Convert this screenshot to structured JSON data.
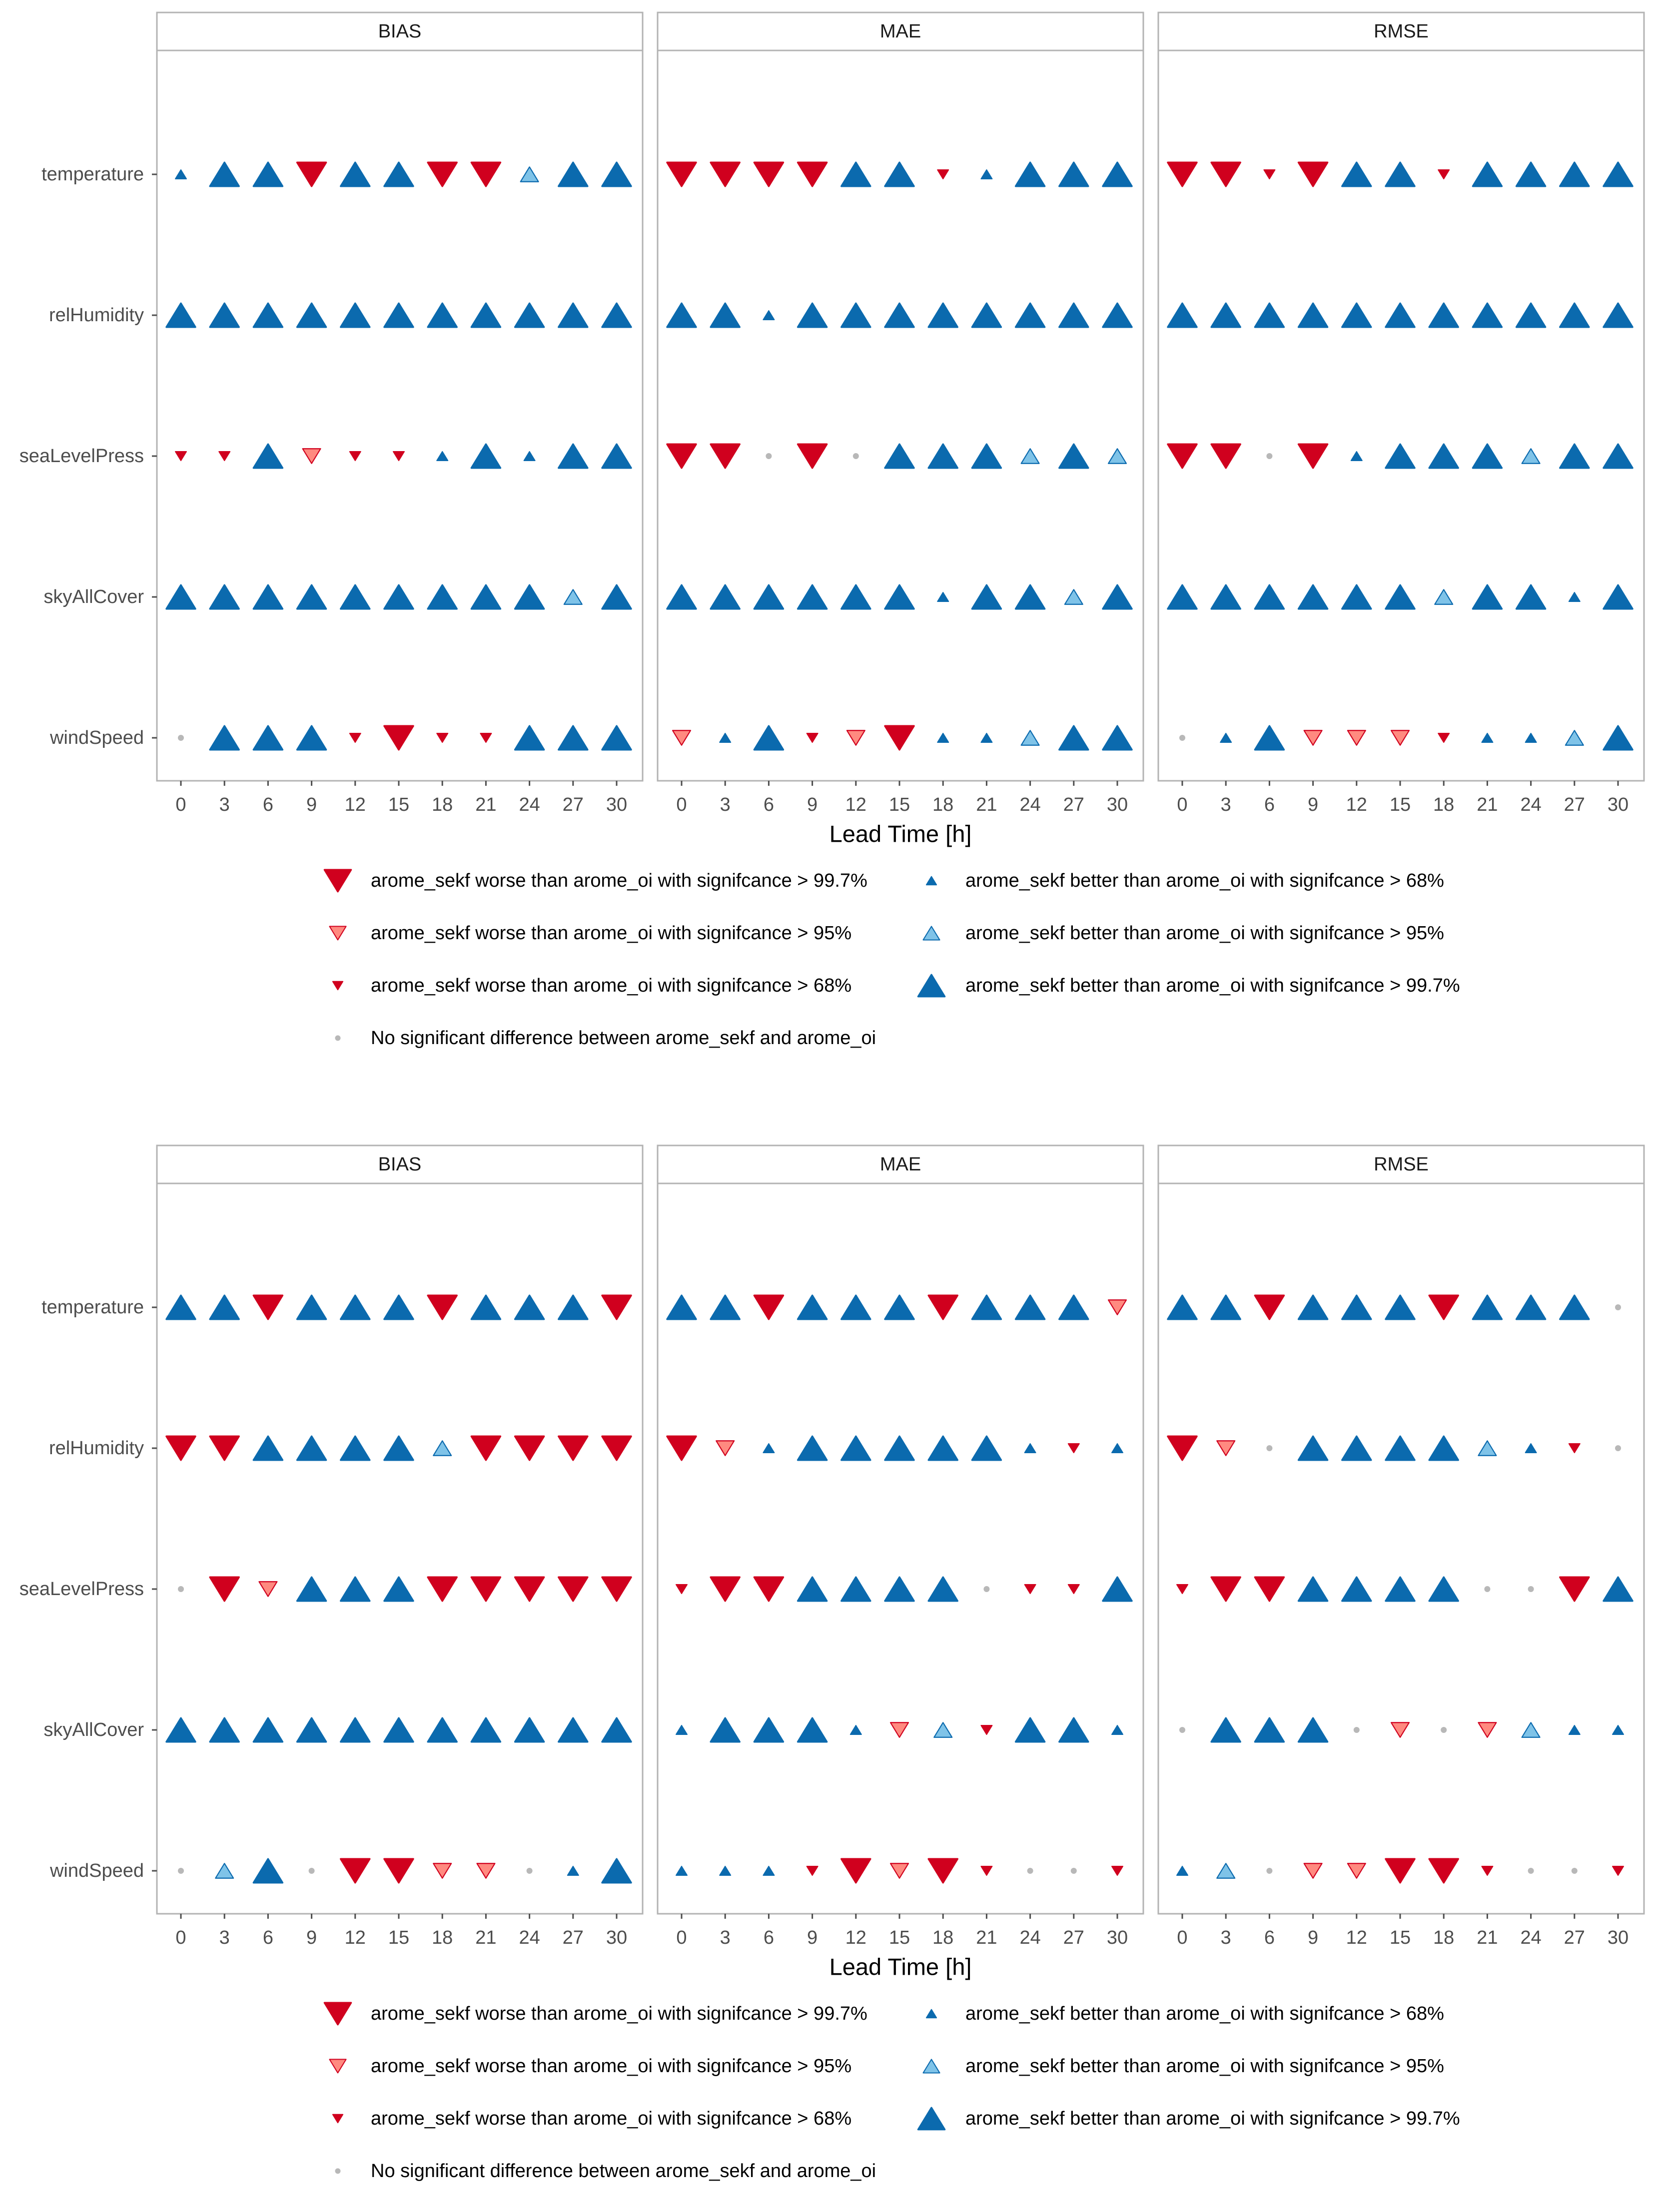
{
  "chart_data": [
    {
      "type": "scatter",
      "facets": [
        "BIAS",
        "MAE",
        "RMSE"
      ],
      "variables": [
        "temperature",
        "relHumidity",
        "seaLevelPress",
        "skyAllCover",
        "windSpeed"
      ],
      "lead_times": [
        0,
        3,
        6,
        9,
        12,
        15,
        18,
        21,
        24,
        27,
        30
      ],
      "xlabel": "Lead Time [h]",
      "code_key": {
        "W3": "arome_sekf worse, >99.7%",
        "W2": "arome_sekf worse, >95%",
        "W1": "arome_sekf worse, >68%",
        "N": "no significant difference",
        "B1": "arome_sekf better, >68%",
        "B2": "arome_sekf better, >95%",
        "B3": "arome_sekf better, >99.7%"
      },
      "values": {
        "BIAS": {
          "temperature": [
            "B1",
            "B3",
            "B3",
            "W3",
            "B3",
            "B3",
            "W3",
            "W3",
            "B2",
            "B3",
            "B3"
          ],
          "relHumidity": [
            "B3",
            "B3",
            "B3",
            "B3",
            "B3",
            "B3",
            "B3",
            "B3",
            "B3",
            "B3",
            "B3"
          ],
          "seaLevelPress": [
            "W1",
            "W1",
            "B3",
            "W2",
            "W1",
            "W1",
            "B1",
            "B3",
            "B1",
            "B3",
            "B3"
          ],
          "skyAllCover": [
            "B3",
            "B3",
            "B3",
            "B3",
            "B3",
            "B3",
            "B3",
            "B3",
            "B3",
            "B2",
            "B3"
          ],
          "windSpeed": [
            "N",
            "B3",
            "B3",
            "B3",
            "W1",
            "W3",
            "W1",
            "W1",
            "B3",
            "B3",
            "B3"
          ]
        },
        "MAE": {
          "temperature": [
            "W3",
            "W3",
            "W3",
            "W3",
            "B3",
            "B3",
            "W1",
            "B1",
            "B3",
            "B3",
            "B3"
          ],
          "relHumidity": [
            "B3",
            "B3",
            "B1",
            "B3",
            "B3",
            "B3",
            "B3",
            "B3",
            "B3",
            "B3",
            "B3"
          ],
          "seaLevelPress": [
            "W3",
            "W3",
            "N",
            "W3",
            "N",
            "B3",
            "B3",
            "B3",
            "B2",
            "B3",
            "B2"
          ],
          "skyAllCover": [
            "B3",
            "B3",
            "B3",
            "B3",
            "B3",
            "B3",
            "B1",
            "B3",
            "B3",
            "B2",
            "B3"
          ],
          "windSpeed": [
            "W2",
            "B1",
            "B3",
            "W1",
            "W2",
            "W3",
            "B1",
            "B1",
            "B2",
            "B3",
            "B3"
          ]
        },
        "RMSE": {
          "temperature": [
            "W3",
            "W3",
            "W1",
            "W3",
            "B3",
            "B3",
            "W1",
            "B3",
            "B3",
            "B3",
            "B3"
          ],
          "relHumidity": [
            "B3",
            "B3",
            "B3",
            "B3",
            "B3",
            "B3",
            "B3",
            "B3",
            "B3",
            "B3",
            "B3"
          ],
          "seaLevelPress": [
            "W3",
            "W3",
            "N",
            "W3",
            "B1",
            "B3",
            "B3",
            "B3",
            "B2",
            "B3",
            "B3"
          ],
          "skyAllCover": [
            "B3",
            "B3",
            "B3",
            "B3",
            "B3",
            "B3",
            "B2",
            "B3",
            "B3",
            "B1",
            "B3"
          ],
          "windSpeed": [
            "N",
            "B1",
            "B3",
            "W2",
            "W2",
            "W2",
            "W1",
            "B1",
            "B1",
            "B2",
            "B3"
          ]
        }
      }
    },
    {
      "type": "scatter",
      "facets": [
        "BIAS",
        "MAE",
        "RMSE"
      ],
      "variables": [
        "temperature",
        "relHumidity",
        "seaLevelPress",
        "skyAllCover",
        "windSpeed"
      ],
      "lead_times": [
        0,
        3,
        6,
        9,
        12,
        15,
        18,
        21,
        24,
        27,
        30
      ],
      "xlabel": "Lead Time [h]",
      "values": {
        "BIAS": {
          "temperature": [
            "B3",
            "B3",
            "W3",
            "B3",
            "B3",
            "B3",
            "W3",
            "B3",
            "B3",
            "B3",
            "W3"
          ],
          "relHumidity": [
            "W3",
            "W3",
            "B3",
            "B3",
            "B3",
            "B3",
            "B2",
            "W3",
            "W3",
            "W3",
            "W3"
          ],
          "seaLevelPress": [
            "N",
            "W3",
            "W2",
            "B3",
            "B3",
            "B3",
            "W3",
            "W3",
            "W3",
            "W3",
            "W3"
          ],
          "skyAllCover": [
            "B3",
            "B3",
            "B3",
            "B3",
            "B3",
            "B3",
            "B3",
            "B3",
            "B3",
            "B3",
            "B3"
          ],
          "windSpeed": [
            "N",
            "B2",
            "B3",
            "N",
            "W3",
            "W3",
            "W2",
            "W2",
            "N",
            "B1",
            "B3"
          ]
        },
        "MAE": {
          "temperature": [
            "B3",
            "B3",
            "W3",
            "B3",
            "B3",
            "B3",
            "W3",
            "B3",
            "B3",
            "B3",
            "W2"
          ],
          "relHumidity": [
            "W3",
            "W2",
            "B1",
            "B3",
            "B3",
            "B3",
            "B3",
            "B3",
            "B1",
            "W1",
            "B1"
          ],
          "seaLevelPress": [
            "W1",
            "W3",
            "W3",
            "B3",
            "B3",
            "B3",
            "B3",
            "N",
            "W1",
            "W1",
            "B3"
          ],
          "skyAllCover": [
            "B1",
            "B3",
            "B3",
            "B3",
            "B1",
            "W2",
            "B2",
            "W1",
            "B3",
            "B3",
            "B1"
          ],
          "windSpeed": [
            "B1",
            "B1",
            "B1",
            "W1",
            "W3",
            "W2",
            "W3",
            "W1",
            "N",
            "N",
            "W1"
          ]
        },
        "RMSE": {
          "temperature": [
            "B3",
            "B3",
            "W3",
            "B3",
            "B3",
            "B3",
            "W3",
            "B3",
            "B3",
            "B3",
            "N"
          ],
          "relHumidity": [
            "W3",
            "W2",
            "N",
            "B3",
            "B3",
            "B3",
            "B3",
            "B2",
            "B1",
            "W1",
            "N"
          ],
          "seaLevelPress": [
            "W1",
            "W3",
            "W3",
            "B3",
            "B3",
            "B3",
            "B3",
            "N",
            "N",
            "W3",
            "B3"
          ],
          "skyAllCover": [
            "N",
            "B3",
            "B3",
            "B3",
            "N",
            "W2",
            "N",
            "W2",
            "B2",
            "B1",
            "B1"
          ],
          "windSpeed": [
            "B1",
            "B2",
            "N",
            "W2",
            "W2",
            "W3",
            "W3",
            "W1",
            "N",
            "N",
            "W1"
          ]
        }
      }
    }
  ],
  "legend": {
    "items": [
      {
        "code": "W3",
        "label": "arome_sekf worse than arome_oi with signifcance > 99.7%"
      },
      {
        "code": "W2",
        "label": "arome_sekf worse than arome_oi with signifcance > 95%"
      },
      {
        "code": "W1",
        "label": "arome_sekf worse than arome_oi with signifcance > 68%"
      },
      {
        "code": "N",
        "label": "No significant difference between arome_sekf and arome_oi"
      },
      {
        "code": "B1",
        "label": "arome_sekf better than arome_oi with signifcance > 68%"
      },
      {
        "code": "B2",
        "label": "arome_sekf better than arome_oi with signifcance > 95%"
      },
      {
        "code": "B3",
        "label": "arome_sekf better than arome_oi with signifcance > 99.7%"
      }
    ]
  },
  "colors": {
    "worse_strong": "#D0001E",
    "worse_light": "#FF8A80",
    "better_strong": "#0B6AAE",
    "better_light": "#7FC3E8",
    "neutral": "#B8B8B8",
    "strip_bg": "#FFFFFF",
    "strip_border": "#B3B3B3",
    "axis_text": "#4D4D4D"
  }
}
